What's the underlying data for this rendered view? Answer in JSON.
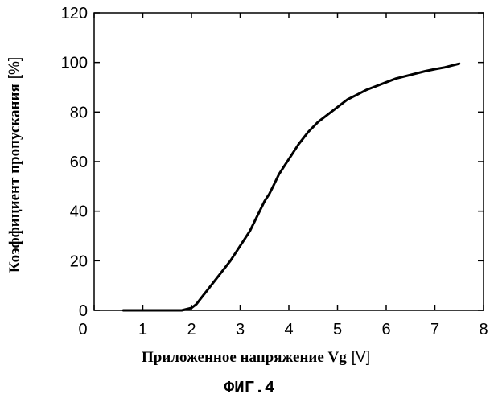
{
  "chart_data": {
    "type": "line",
    "xlabel": "Приложенное напряжение Vg",
    "xlabel_unit": "[V]",
    "ylabel": "Коэффициент пропускания",
    "ylabel_unit": "[%]",
    "caption": "ФИГ.4",
    "xlim": [
      0,
      8
    ],
    "ylim": [
      0,
      120
    ],
    "x_ticks": [
      0,
      1,
      2,
      3,
      4,
      5,
      6,
      7,
      8
    ],
    "y_ticks": [
      0,
      20,
      40,
      60,
      80,
      100,
      120
    ],
    "grid": false,
    "series": [
      {
        "color": "#000000",
        "x": [
          0.6,
          1.0,
          1.5,
          1.8,
          1.9,
          2.0,
          2.1,
          2.2,
          2.4,
          2.6,
          2.8,
          3.0,
          3.2,
          3.4,
          3.5,
          3.6,
          3.7,
          3.8,
          3.9,
          4.0,
          4.2,
          4.4,
          4.6,
          4.8,
          5.0,
          5.2,
          5.4,
          5.6,
          5.8,
          6.0,
          6.2,
          6.5,
          6.8,
          7.0,
          7.2,
          7.5
        ],
        "y": [
          0,
          0,
          0,
          0,
          0.5,
          1,
          2.5,
          5,
          10,
          15,
          20,
          26,
          32,
          40,
          44,
          47,
          51,
          55,
          58,
          61,
          67,
          72,
          76,
          79,
          82,
          85,
          87,
          89,
          90.5,
          92,
          93.5,
          95,
          96.5,
          97.3,
          98,
          99.5
        ]
      }
    ]
  }
}
